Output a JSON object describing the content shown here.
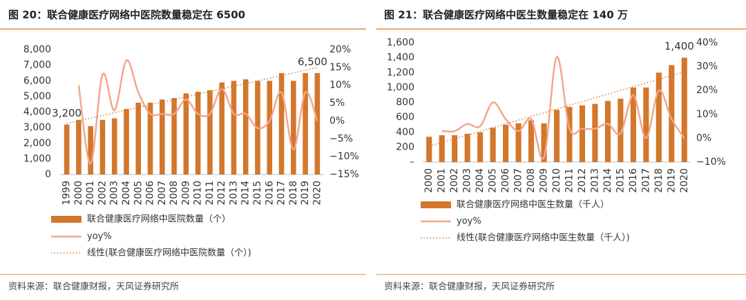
{
  "chart_data": [
    {
      "type": "bar",
      "title": "图 20：联合健康医疗网络中医院数量稳定在 6500",
      "source": "资料来源：联合健康财报，天风证券研究所",
      "categories": [
        "1999",
        "2000",
        "2001",
        "2002",
        "2003",
        "2004",
        "2005",
        "2006",
        "2007",
        "2008",
        "2009",
        "2010",
        "2011",
        "2012",
        "2013",
        "2014",
        "2015",
        "2016",
        "2017",
        "2018",
        "2019",
        "2020"
      ],
      "series": [
        {
          "name": "联合健康医疗网络中医院数量（个）",
          "color": "#d2772c",
          "values": [
            3200,
            3500,
            3100,
            3500,
            3600,
            4200,
            4600,
            4600,
            4800,
            4900,
            5200,
            5300,
            5400,
            5900,
            6000,
            6100,
            6000,
            6000,
            6500,
            6000,
            6500,
            6500
          ],
          "value_labels": [
            "3,200",
            null,
            null,
            null,
            null,
            null,
            null,
            null,
            null,
            null,
            null,
            null,
            null,
            null,
            null,
            null,
            null,
            null,
            null,
            null,
            null,
            "6,500"
          ]
        },
        {
          "name": "yoy%",
          "color": "#f2a68a",
          "type": "line",
          "axis": "y2",
          "values": [
            null,
            10,
            -12,
            13,
            3,
            17,
            8,
            2,
            2,
            2,
            6,
            2,
            2,
            9,
            2,
            2,
            -2,
            0,
            8,
            -8,
            8,
            0
          ]
        },
        {
          "name": "线性(联合健康医疗网络中医院数量（个）)",
          "color": "#d2772c",
          "type": "trendline"
        }
      ],
      "ylim": [
        0,
        8000
      ],
      "yticks": [
        0,
        {
          "value": 1000,
          "label": "1,000"
        },
        {
          "value": 2000,
          "label": "2,000"
        },
        {
          "value": 3000,
          "label": "3,000"
        },
        {
          "value": 4000,
          "label": "4,000"
        },
        {
          "value": 5000,
          "label": "5,000"
        },
        {
          "value": 6000,
          "label": "6,000"
        },
        {
          "value": 7000,
          "label": "7,000"
        },
        {
          "value": 8000,
          "label": "8,000"
        }
      ],
      "y2lim": [
        -15,
        20
      ],
      "y2ticks": [
        {
          "value": -15,
          "label": "−15%"
        },
        {
          "value": -10,
          "label": "−10%"
        },
        {
          "value": -5,
          "label": "−5%"
        },
        {
          "value": 0,
          "label": "0%"
        },
        {
          "value": 5,
          "label": "5%"
        },
        {
          "value": 10,
          "label": "10%"
        },
        {
          "value": 15,
          "label": "15%"
        },
        {
          "value": 20,
          "label": "20%"
        }
      ]
    },
    {
      "type": "bar",
      "title": "图 21：联合健康医疗网络中医生数量稳定在 140 万",
      "source": "资料来源：联合健康财报，天风证券研究所",
      "categories": [
        "2000",
        "2001",
        "2002",
        "2003",
        "2004",
        "2005",
        "2006",
        "2007",
        "2008",
        "2009",
        "2010",
        "2011",
        "2012",
        "2013",
        "2014",
        "2015",
        "2016",
        "2017",
        "2018",
        "2019",
        "2020"
      ],
      "series": [
        {
          "name": "联合健康医疗网络中医生数量（千人）",
          "color": "#d2772c",
          "values": [
            340,
            360,
            360,
            380,
            400,
            460,
            500,
            520,
            560,
            520,
            700,
            740,
            760,
            780,
            820,
            850,
            1000,
            1000,
            1200,
            1300,
            1400
          ],
          "value_labels": [
            null,
            null,
            null,
            null,
            null,
            null,
            null,
            null,
            null,
            null,
            null,
            null,
            null,
            null,
            null,
            null,
            null,
            null,
            null,
            null,
            "1,400"
          ]
        },
        {
          "name": "yoy%",
          "color": "#f2a68a",
          "type": "line",
          "axis": "y2",
          "values": [
            null,
            3,
            3,
            6,
            5,
            15,
            8,
            3,
            8,
            -8,
            34,
            4,
            4,
            4,
            6,
            2,
            18,
            0,
            20,
            8,
            0
          ]
        },
        {
          "name": "线性(联合健康医疗网络中医生数量（千人）)",
          "color": "#d2772c",
          "type": "trendline"
        }
      ],
      "ylim": [
        0,
        1600
      ],
      "yticks": [
        {
          "value": 0,
          "label": "–"
        },
        200,
        400,
        600,
        800,
        {
          "value": 1000,
          "label": "1,000"
        },
        {
          "value": 1200,
          "label": "1,200"
        },
        {
          "value": 1400,
          "label": "1,400"
        },
        {
          "value": 1600,
          "label": "1,600"
        }
      ],
      "y2lim": [
        -10,
        40
      ],
      "y2ticks": [
        {
          "value": -10,
          "label": "−10%"
        },
        {
          "value": 0,
          "label": "0%"
        },
        {
          "value": 10,
          "label": "10%"
        },
        {
          "value": 20,
          "label": "20%"
        },
        {
          "value": 30,
          "label": "30%"
        },
        {
          "value": 40,
          "label": "40%"
        }
      ]
    }
  ]
}
